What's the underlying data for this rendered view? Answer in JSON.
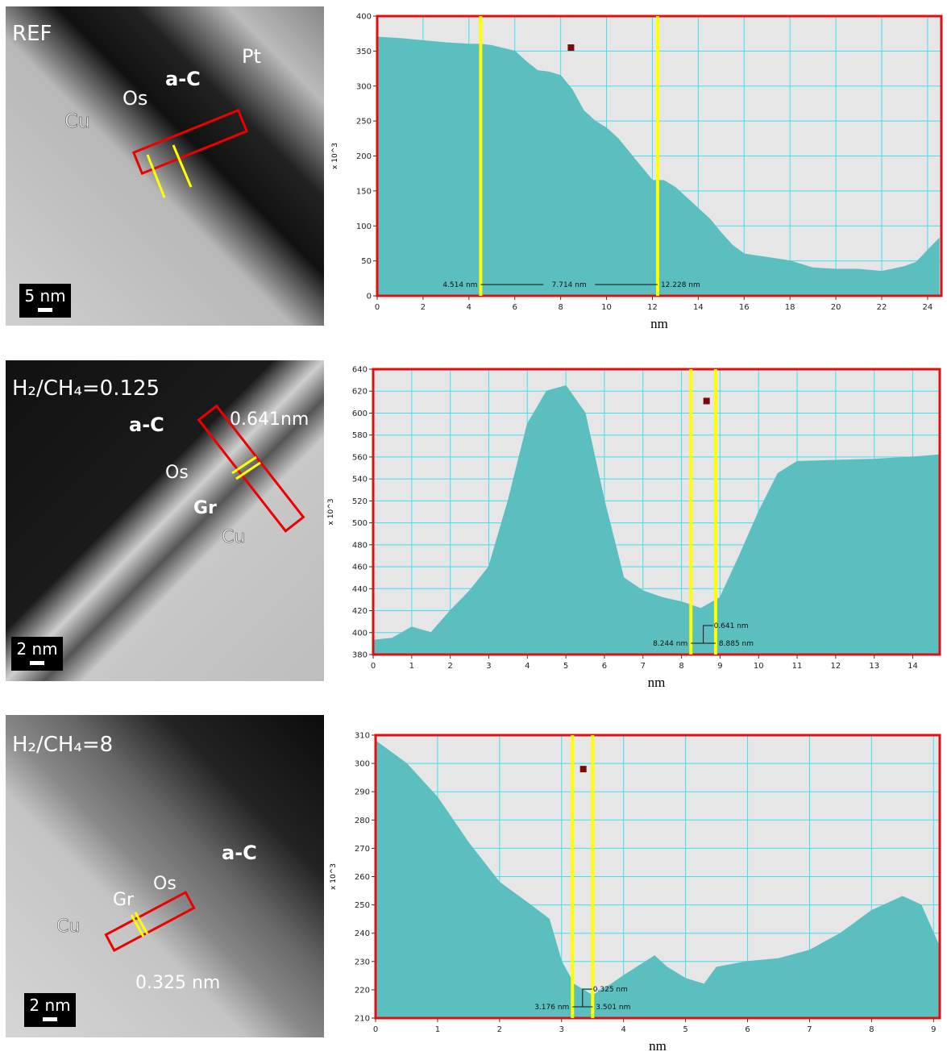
{
  "panels": [
    {
      "labels": [
        "REF",
        "Os",
        "a-C",
        "Pt",
        "Cu"
      ],
      "scale_bar": "5 nm"
    },
    {
      "labels": [
        "H₂/CH₄=0.125",
        "a-C",
        "0.641nm",
        "Os",
        "Gr",
        "Cu"
      ],
      "scale_bar": "2 nm"
    },
    {
      "labels": [
        "H₂/CH₄=8",
        "a-C",
        "Os",
        "Gr",
        "Cu",
        "0.325 nm"
      ],
      "scale_bar": "2 nm"
    }
  ],
  "chart_data": [
    {
      "type": "area",
      "y_label": "x 10^3",
      "x_label": "nm",
      "color": "#5bbfbf",
      "grid": true,
      "xlim": [
        0,
        24.6
      ],
      "ylim": [
        0,
        400
      ],
      "xticks": [
        0,
        2,
        4,
        6,
        8,
        10,
        12,
        14,
        16,
        18,
        20,
        22,
        24
      ],
      "yticks": [
        0,
        50,
        100,
        150,
        200,
        250,
        300,
        350,
        400
      ],
      "x": [
        0,
        1,
        2,
        3,
        4,
        4.5,
        5,
        6,
        6.5,
        7,
        7.5,
        8,
        8.5,
        9,
        9.5,
        10,
        10.5,
        11,
        11.5,
        12,
        12.5,
        13,
        13.5,
        14,
        14.5,
        15,
        15.5,
        16,
        17,
        18,
        19,
        20,
        21,
        22,
        23,
        23.5,
        24,
        24.5
      ],
      "values": [
        370,
        368,
        365,
        362,
        360,
        360,
        358,
        350,
        335,
        322,
        320,
        315,
        295,
        265,
        250,
        240,
        225,
        205,
        185,
        165,
        165,
        155,
        140,
        125,
        110,
        90,
        72,
        60,
        55,
        50,
        40,
        38,
        38,
        35,
        42,
        48,
        65,
        82
      ],
      "cursors": [
        {
          "value": 4.514,
          "label": "4.514 nm"
        },
        {
          "value": 12.228,
          "label": "12.228 nm"
        }
      ],
      "distance": {
        "value": 7.714,
        "label": "7.714 nm"
      },
      "marker": [
        8.45,
        355
      ]
    },
    {
      "type": "area",
      "y_label": "x 10^3",
      "x_label": "nm",
      "color": "#5bbfbf",
      "grid": true,
      "xlim": [
        0,
        14.7
      ],
      "ylim": [
        380,
        640
      ],
      "xticks": [
        0,
        1,
        2,
        3,
        4,
        5,
        6,
        7,
        8,
        9,
        10,
        11,
        12,
        13,
        14
      ],
      "yticks": [
        380,
        400,
        420,
        440,
        460,
        480,
        500,
        520,
        540,
        560,
        580,
        600,
        620,
        640
      ],
      "x": [
        0,
        0.5,
        1,
        1.5,
        2,
        2.5,
        3,
        3.5,
        4,
        4.5,
        5,
        5.5,
        6,
        6.5,
        7,
        7.5,
        8,
        8.5,
        9,
        9.5,
        10,
        10.5,
        11,
        12,
        13,
        14,
        14.7
      ],
      "values": [
        393,
        395,
        405,
        400,
        420,
        438,
        460,
        520,
        590,
        620,
        625,
        600,
        520,
        450,
        438,
        432,
        428,
        422,
        432,
        470,
        510,
        545,
        556,
        557,
        558,
        560,
        562
      ],
      "cursors": [
        {
          "value": 8.244,
          "label": "8.244 nm"
        },
        {
          "value": 8.885,
          "label": "8.885 nm"
        }
      ],
      "distance": {
        "value": 0.641,
        "label": "0.641 nm"
      },
      "marker": [
        8.65,
        611
      ]
    },
    {
      "type": "area",
      "y_label": "x 10^3",
      "x_label": "nm",
      "color": "#5bbfbf",
      "grid": true,
      "xlim": [
        0,
        9.1
      ],
      "ylim": [
        210,
        310
      ],
      "xticks": [
        0,
        1,
        2,
        3,
        4,
        5,
        6,
        7,
        8,
        9
      ],
      "yticks": [
        210,
        220,
        230,
        240,
        250,
        260,
        270,
        280,
        290,
        300,
        310
      ],
      "x": [
        0,
        0.5,
        1,
        1.5,
        2,
        2.5,
        2.8,
        3,
        3.2,
        3.5,
        3.8,
        4,
        4.5,
        4.7,
        5,
        5.3,
        5.5,
        6,
        6.5,
        7,
        7.5,
        8,
        8.5,
        8.8,
        9.1
      ],
      "values": [
        308,
        300,
        288,
        272,
        258,
        250,
        245,
        230,
        222,
        218,
        222,
        225,
        232,
        228,
        224,
        222,
        228,
        230,
        231,
        234,
        240,
        248,
        253,
        250,
        235
      ],
      "cursors": [
        {
          "value": 3.176,
          "label": "3.176 nm"
        },
        {
          "value": 3.501,
          "label": "3.501 nm"
        }
      ],
      "distance": {
        "value": 0.325,
        "label": "0.325 nm"
      },
      "marker": [
        3.35,
        298
      ]
    }
  ]
}
